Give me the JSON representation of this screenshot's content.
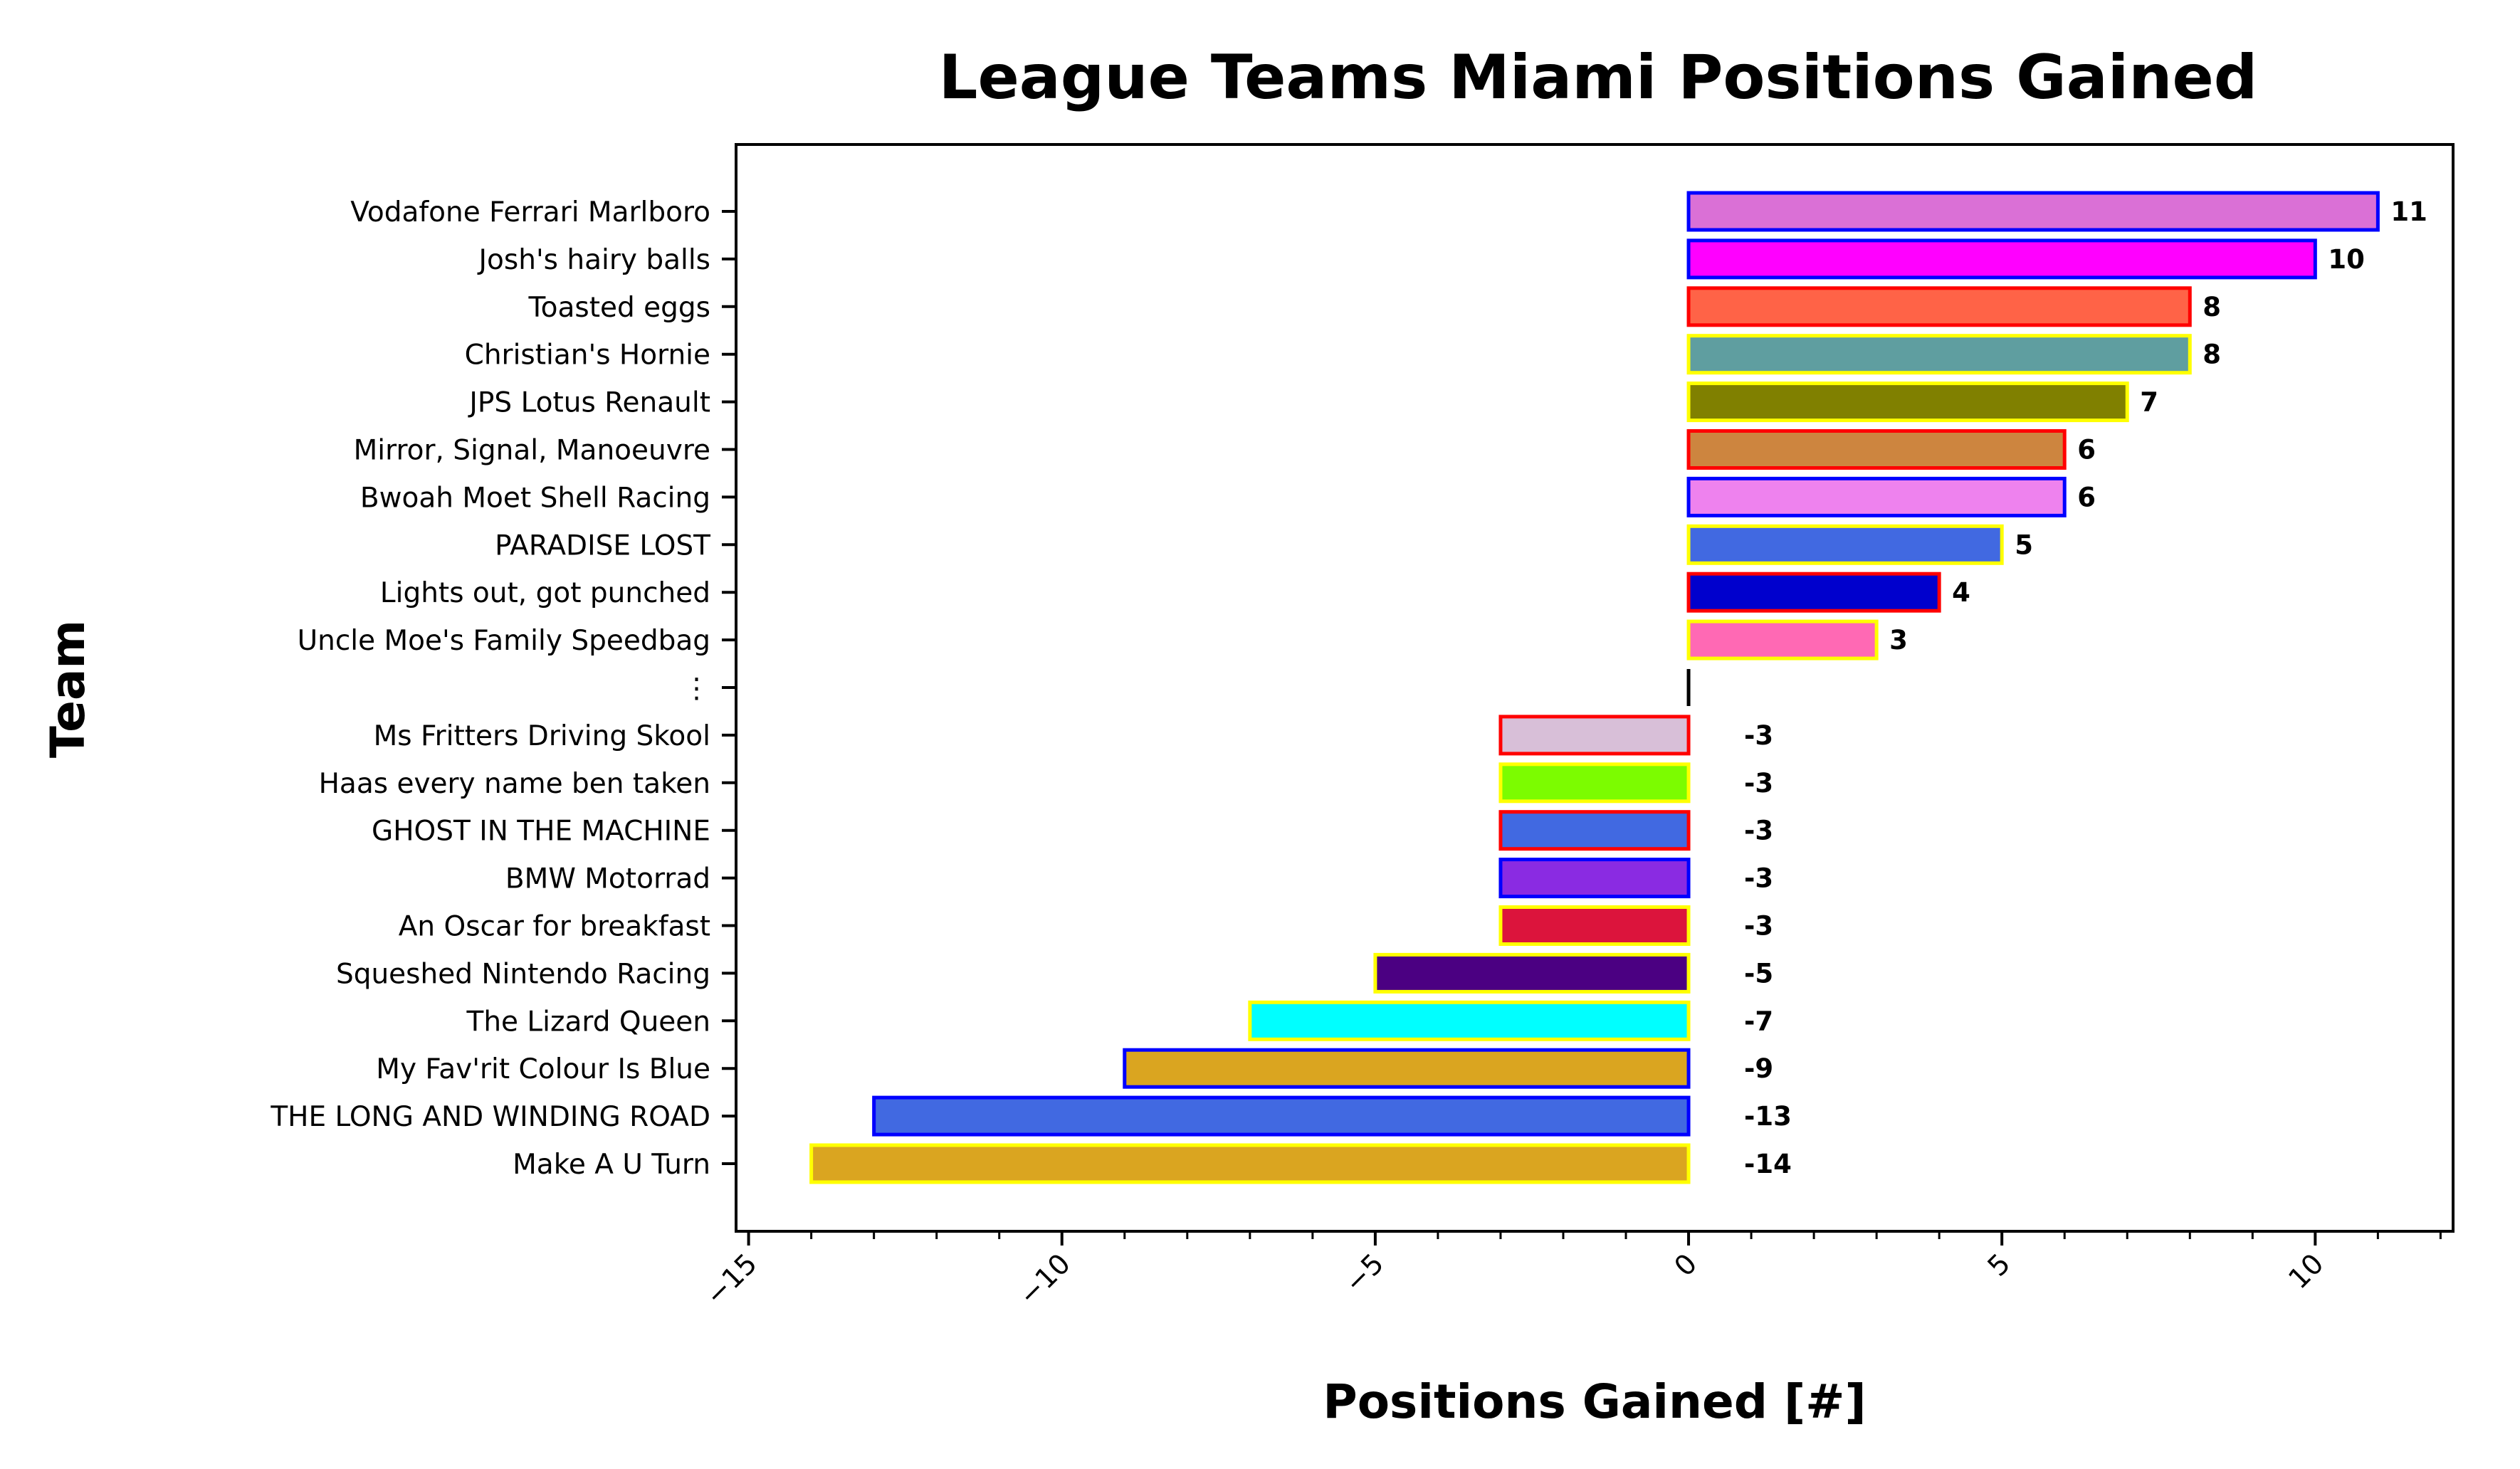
{
  "chart_data": {
    "type": "bar",
    "orientation": "horizontal",
    "title": "League Teams Miami Positions Gained",
    "xlabel": "Positions Gained [#]",
    "ylabel": "Team",
    "xlim": [
      -15.2,
      12.2
    ],
    "x_ticks": [
      -15,
      -10,
      -5,
      0,
      5,
      10
    ],
    "x_tick_labels": [
      "−15",
      "−10",
      "−5",
      "0",
      "5",
      "10"
    ],
    "x_minor_ticks": [
      -14,
      -13,
      -12,
      -11,
      -9,
      -8,
      -7,
      -6,
      -4,
      -3,
      -2,
      -1,
      1,
      2,
      3,
      4,
      6,
      7,
      8,
      9,
      11,
      12
    ],
    "grid": false,
    "legend": "none",
    "categories": [
      "Vodafone Ferrari Marlboro",
      "Josh's hairy balls",
      "Toasted eggs",
      "Christian's Hornie",
      "JPS Lotus Renault",
      "Mirror, Signal, Manoeuvre",
      "Bwoah Moet Shell Racing",
      "PARADISE LOST",
      "Lights out, got punched",
      "Uncle Moe's Family Speedbag",
      "⋮",
      "Ms Fritters Driving Skool",
      "Haas every name ben taken",
      "GHOST IN THE MACHINE",
      "BMW Motorrad",
      "An Oscar for breakfast",
      "Squeshed Nintendo Racing",
      "The Lizard Queen",
      "My Fav'rit Colour Is Blue",
      "THE LONG AND WINDING ROAD",
      "Make A U Turn"
    ],
    "values": [
      11,
      10,
      8,
      8,
      7,
      6,
      6,
      5,
      4,
      3,
      null,
      -3,
      -3,
      -3,
      -3,
      -3,
      -5,
      -7,
      -9,
      -13,
      -14
    ],
    "value_labels": [
      "11",
      "10",
      "8",
      "8",
      "7",
      "6",
      "6",
      "5",
      "4",
      "3",
      "",
      "-3",
      "-3",
      "-3",
      "-3",
      "-3",
      "-5",
      "-7",
      "-9",
      "-13",
      "-14"
    ],
    "fill_colors": [
      "#DA70D6",
      "#FF00FF",
      "#FF6347",
      "#5F9EA0",
      "#808000",
      "#CD853F",
      "#EE82EE",
      "#4169E1",
      "#0000CD",
      "#FF69B4",
      "#000000",
      "#D8BFD8",
      "#7CFC00",
      "#4169E1",
      "#8A2BE2",
      "#DC143C",
      "#4B0082",
      "#00FFFF",
      "#DAA520",
      "#4169E1",
      "#DAA520"
    ],
    "edge_colors": [
      "#0000FF",
      "#0000FF",
      "#FF0000",
      "#FFFF00",
      "#FFFF00",
      "#FF0000",
      "#0000FF",
      "#FFFF00",
      "#FF0000",
      "#FFFF00",
      "#000000",
      "#FF0000",
      "#FFFF00",
      "#FF0000",
      "#0000FF",
      "#FFFF00",
      "#FFFF00",
      "#FFFF00",
      "#0000FF",
      "#0000FF",
      "#FFFF00"
    ]
  }
}
